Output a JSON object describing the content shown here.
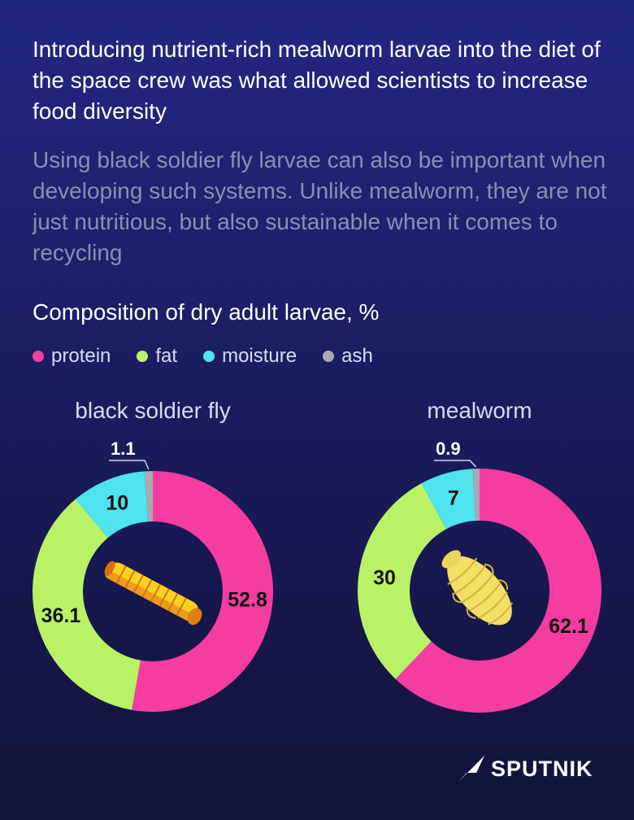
{
  "headline": "Introducing nutrient-rich mealworm larvae into the diet of the space crew was what allowed scientists to increase food diversity",
  "subtext": "Using black soldier fly larvae can also be important when developing such systems. Unlike mealworm, they are not just nutritious, but also sustainable when it comes to recycling",
  "brand": "SPUTNIK",
  "colors": {
    "protein": "#f53ca0",
    "fat": "#b9f266",
    "moisture": "#4ee3ee",
    "ash": "#a9a9b3",
    "background": "#1f216e"
  },
  "chart_data": {
    "type": "pie",
    "variant": "donut",
    "title": "Composition of dry adult larvae, %",
    "legend": [
      {
        "key": "protein",
        "label": "protein"
      },
      {
        "key": "fat",
        "label": "fat"
      },
      {
        "key": "moisture",
        "label": "moisture"
      },
      {
        "key": "ash",
        "label": "ash"
      }
    ],
    "charts": [
      {
        "name": "black soldier fly",
        "icon": "black-soldier-fly-larva-icon",
        "slices": [
          {
            "key": "protein",
            "label": "protein",
            "value": 52.8
          },
          {
            "key": "fat",
            "label": "fat",
            "value": 36.1
          },
          {
            "key": "moisture",
            "label": "moisture",
            "value": 10
          },
          {
            "key": "ash",
            "label": "ash",
            "value": 1.1
          }
        ]
      },
      {
        "name": "mealworm",
        "icon": "mealworm-larva-icon",
        "slices": [
          {
            "key": "protein",
            "label": "protein",
            "value": 62.1
          },
          {
            "key": "fat",
            "label": "fat",
            "value": 30
          },
          {
            "key": "moisture",
            "label": "moisture",
            "value": 7
          },
          {
            "key": "ash",
            "label": "ash",
            "value": 0.9
          }
        ]
      }
    ]
  }
}
